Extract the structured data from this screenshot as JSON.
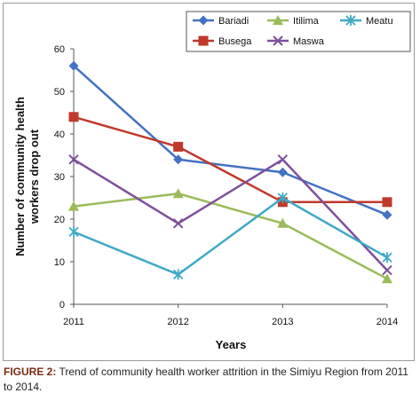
{
  "chart_data": {
    "type": "line",
    "x": [
      "2011",
      "2012",
      "2013",
      "2014"
    ],
    "xlabel": "Years",
    "ylabel": "Number of community health workers drop out",
    "ylim": [
      0,
      60
    ],
    "yticks": [
      "0",
      "10",
      "20",
      "30",
      "40",
      "50",
      "60"
    ],
    "grid": false,
    "legend_position": "top-right",
    "series": [
      {
        "name": "Bariadi",
        "values": [
          56,
          34,
          31,
          21
        ],
        "color": "#4472C4",
        "marker": "diamond"
      },
      {
        "name": "Busega",
        "values": [
          44,
          37,
          24,
          24
        ],
        "color": "#C0392B",
        "marker": "square"
      },
      {
        "name": "Itilima",
        "values": [
          23,
          26,
          19,
          6
        ],
        "color": "#9BBB59",
        "marker": "triangle"
      },
      {
        "name": "Maswa",
        "values": [
          34,
          19,
          34,
          8
        ],
        "color": "#7E4F9A",
        "marker": "x"
      },
      {
        "name": "Meatu",
        "values": [
          17,
          7,
          25,
          11
        ],
        "color": "#3FA9C6",
        "marker": "asterisk"
      }
    ]
  },
  "caption": {
    "label": "FIGURE 2:",
    "text": " Trend of community health worker attrition in the Simiyu Region from 2011 to 2014."
  }
}
